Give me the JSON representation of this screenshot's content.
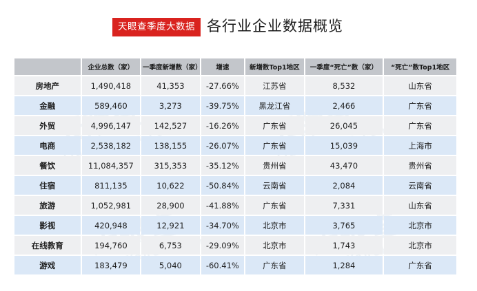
{
  "brand_label": "天眼查季度大数据",
  "title": "各行业企业数据概览",
  "watermark": {
    "main": "天眼查",
    "sub": "TianYanCha.com"
  },
  "colors": {
    "brand_red": "#d9231f",
    "header_bg": "#c3c6cb",
    "row_gray": "#eeeff1",
    "row_blue": "#dbe8f7"
  },
  "chart_data": {
    "type": "table",
    "columns": [
      "",
      "企业总数（家）",
      "一季度新增数（家）",
      "增速",
      "新增数Top1地区",
      "一季度“死亡”数（家）",
      "“死亡”数Top1地区"
    ],
    "rows": [
      [
        "房地产",
        "1,490,418",
        "41,353",
        "-27.66%",
        "江苏省",
        "8,532",
        "山东省"
      ],
      [
        "金融",
        "589,460",
        "3,273",
        "-39.75%",
        "黑龙江省",
        "2,466",
        "广东省"
      ],
      [
        "外贸",
        "4,996,147",
        "142,527",
        "-16.26%",
        "广东省",
        "26,045",
        "广东省"
      ],
      [
        "电商",
        "2,538,182",
        "138,155",
        "-26.07%",
        "广东省",
        "15,039",
        "上海市"
      ],
      [
        "餐饮",
        "11,084,357",
        "315,353",
        "-35.12%",
        "贵州省",
        "43,470",
        "贵州省"
      ],
      [
        "住宿",
        "811,135",
        "10,622",
        "-50.84%",
        "云南省",
        "2,084",
        "云南省"
      ],
      [
        "旅游",
        "1,052,981",
        "28,900",
        "-41.88%",
        "广东省",
        "7,331",
        "山东省"
      ],
      [
        "影视",
        "420,948",
        "12,921",
        "-34.70%",
        "北京市",
        "3,765",
        "北京市"
      ],
      [
        "在线教育",
        "194,760",
        "6,753",
        "-29.09%",
        "北京市",
        "1,743",
        "北京市"
      ],
      [
        "游戏",
        "183,479",
        "5,040",
        "-60.41%",
        "广东省",
        "1,284",
        "广东省"
      ]
    ]
  }
}
